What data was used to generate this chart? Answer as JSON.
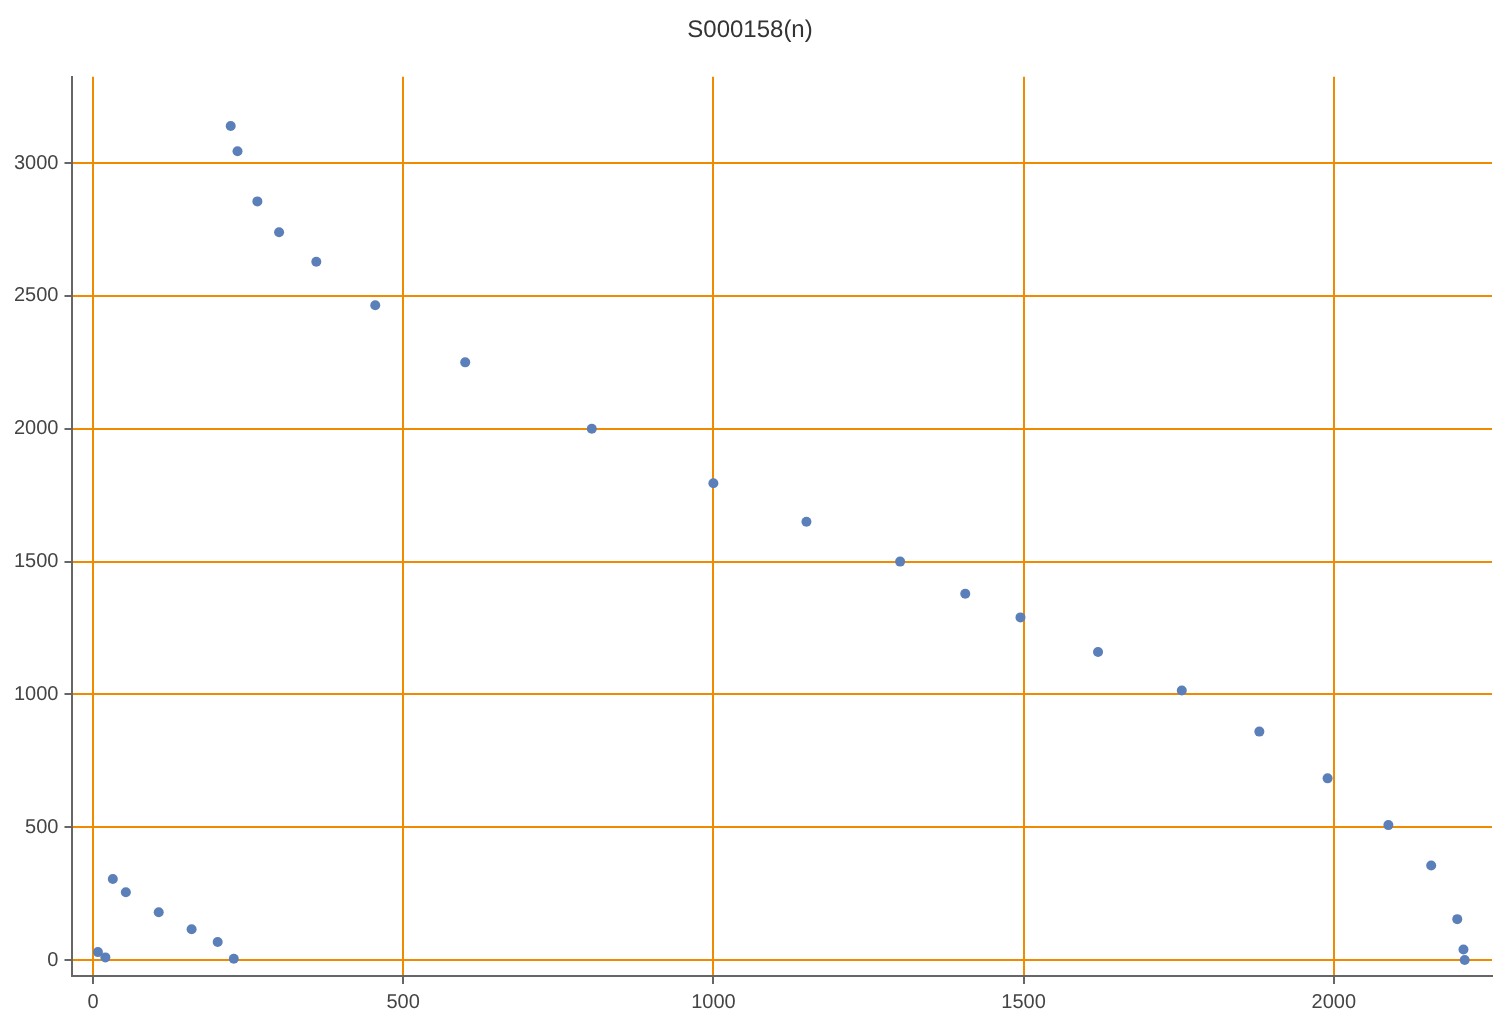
{
  "chart_data": {
    "type": "scatter",
    "title": "S000158(n)",
    "marker": "circle",
    "grid": true,
    "xlim": [
      -33,
      2255
    ],
    "ylim": [
      -60,
      3325
    ],
    "xticks": [
      0,
      500,
      1000,
      1500,
      2000
    ],
    "yticks": [
      0,
      500,
      1000,
      1500,
      2000,
      2500,
      3000
    ],
    "series": [
      {
        "color": "#5b7fb8",
        "x": [
          8,
          20,
          32,
          53,
          106,
          159,
          201,
          227,
          222,
          233,
          265,
          300,
          360,
          455,
          600,
          804,
          1000,
          1150,
          1301,
          1406,
          1495,
          1620,
          1755,
          1880,
          1990,
          2088,
          2157,
          2199,
          2209,
          2211
        ],
        "values": [
          30,
          10,
          305,
          255,
          180,
          116,
          68,
          5,
          3140,
          3045,
          2856,
          2740,
          2629,
          2465,
          2250,
          2000,
          1795,
          1650,
          1500,
          1379,
          1290,
          1160,
          1015,
          860,
          684,
          508,
          356,
          154,
          40,
          0
        ]
      }
    ]
  }
}
